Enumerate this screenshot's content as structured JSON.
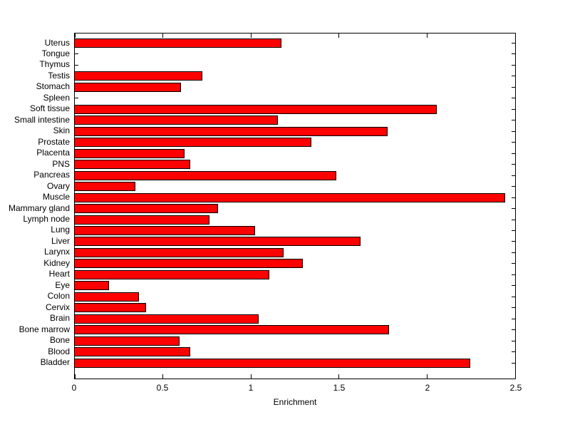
{
  "chart_data": {
    "type": "bar",
    "orientation": "horizontal",
    "title": "",
    "xlabel": "Enrichment",
    "ylabel": "",
    "xlim": [
      0,
      2.5
    ],
    "xticks": [
      0,
      0.5,
      1,
      1.5,
      2,
      2.5
    ],
    "xtick_labels": [
      "0",
      "0.5",
      "1",
      "1.5",
      "2",
      "2.5"
    ],
    "grid": false,
    "legend": null,
    "bar_color": "#ff0000",
    "bar_edge_color": "#000000",
    "axis_color": "#000000",
    "background_color": "#ffffff",
    "categories_top_to_bottom": [
      "Uterus",
      "Tongue",
      "Thymus",
      "Testis",
      "Stomach",
      "Spleen",
      "Soft tissue",
      "Small intestine",
      "Skin",
      "Prostate",
      "Placenta",
      "PNS",
      "Pancreas",
      "Ovary",
      "Muscle",
      "Mammary gland",
      "Lymph node",
      "Lung",
      "Liver",
      "Larynx",
      "Kidney",
      "Heart",
      "Eye",
      "Colon",
      "Cervix",
      "Brain",
      "Bone marrow",
      "Bone",
      "Blood",
      "Bladder"
    ],
    "values_top_to_bottom": [
      1.17,
      0,
      0,
      0.72,
      0.6,
      0,
      2.05,
      1.15,
      1.77,
      1.34,
      0.62,
      0.65,
      1.48,
      0.34,
      2.44,
      0.81,
      0.76,
      1.02,
      1.62,
      1.18,
      1.29,
      1.1,
      0.19,
      0.36,
      0.4,
      1.04,
      1.78,
      0.59,
      0.65,
      2.24
    ]
  }
}
